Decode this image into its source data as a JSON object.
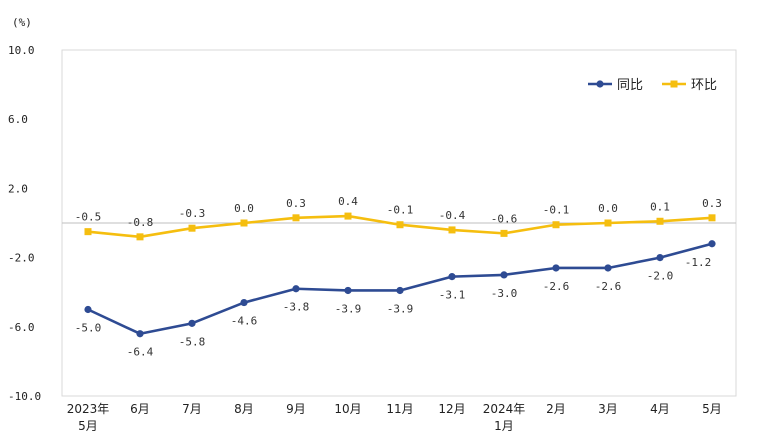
{
  "chart_data": {
    "type": "line",
    "unit_label": "(%)",
    "categories": [
      [
        "2023年",
        "5月"
      ],
      [
        "6月"
      ],
      [
        "7月"
      ],
      [
        "8月"
      ],
      [
        "9月"
      ],
      [
        "10月"
      ],
      [
        "11月"
      ],
      [
        "12月"
      ],
      [
        "2024年",
        "1月"
      ],
      [
        "2月"
      ],
      [
        "3月"
      ],
      [
        "4月"
      ],
      [
        "5月"
      ]
    ],
    "ylim": [
      -10,
      10
    ],
    "yticks": [
      "10.0",
      "6.0",
      "2.0",
      "-2.0",
      "-6.0",
      "-10.0"
    ],
    "ytick_values": [
      10,
      6,
      2,
      -2,
      -6,
      -10
    ],
    "grid": false,
    "legend_position": "top-right",
    "series": [
      {
        "name": "同比",
        "color": "#2E4B93",
        "values": [
          -5.0,
          -6.4,
          -5.8,
          -4.6,
          -3.8,
          -3.9,
          -3.9,
          -3.1,
          -3.0,
          -2.6,
          -2.6,
          -2.0,
          -1.2
        ],
        "labels": [
          "-5.0",
          "-6.4",
          "-5.8",
          "-4.6",
          "-3.8",
          "-3.9",
          "-3.9",
          "-3.1",
          "-3.0",
          "-2.6",
          "-2.6",
          "-2.0",
          "-1.2"
        ]
      },
      {
        "name": "环比",
        "color": "#F5BE0F",
        "values": [
          -0.5,
          -0.8,
          -0.3,
          0.0,
          0.3,
          0.4,
          -0.1,
          -0.4,
          -0.6,
          -0.1,
          0.0,
          0.1,
          0.3
        ],
        "labels": [
          "-0.5",
          "-0.8",
          "-0.3",
          "0.0",
          "0.3",
          "0.4",
          "-0.1",
          "-0.4",
          "-0.6",
          "-0.1",
          "0.0",
          "0.1",
          "0.3"
        ]
      }
    ]
  }
}
